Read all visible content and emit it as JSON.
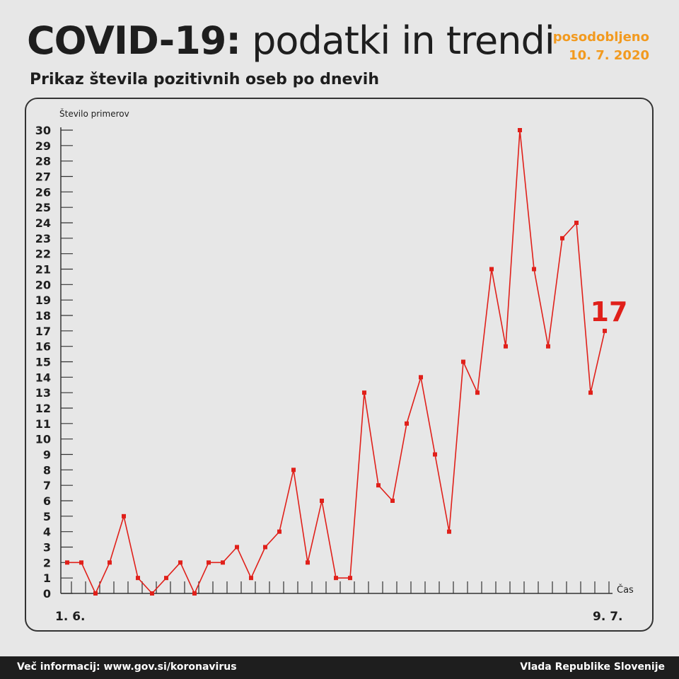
{
  "header": {
    "title_bold": "COVID-19:",
    "title_rest": "podatki in trendi",
    "updated_label": "posodobljeno",
    "updated_date": "10. 7. 2020",
    "subtitle": "Prikaz števila pozitivnih oseb po dnevih"
  },
  "footer": {
    "info": "Več informacij: www.gov.si/koronavirus",
    "org": "Vlada Republike Slovenije"
  },
  "colors": {
    "line": "#e0201a",
    "accent": "#f29a1f",
    "text": "#1e1e1e"
  },
  "chart_data": {
    "type": "line",
    "title": "Prikaz števila pozitivnih oseb po dnevih",
    "ylabel": "Število primerov",
    "xlabel": "Čas",
    "x_start_label": "1. 6.",
    "x_end_label": "9. 7.",
    "ylim": [
      0,
      30
    ],
    "yticks": [
      0,
      1,
      2,
      3,
      4,
      5,
      6,
      7,
      8,
      9,
      10,
      11,
      12,
      13,
      14,
      15,
      16,
      17,
      18,
      19,
      20,
      21,
      22,
      23,
      24,
      25,
      26,
      27,
      28,
      29,
      30
    ],
    "last_value_label": "17",
    "series": [
      {
        "values": [
          2,
          2,
          0,
          2,
          5,
          1,
          0,
          1,
          2,
          0,
          2,
          2,
          3,
          1,
          3,
          4,
          8,
          2,
          6,
          1,
          1,
          13,
          7,
          6,
          11,
          14,
          9,
          4,
          15,
          13,
          21,
          16,
          30,
          21,
          16,
          23,
          24,
          13,
          17
        ]
      }
    ]
  }
}
